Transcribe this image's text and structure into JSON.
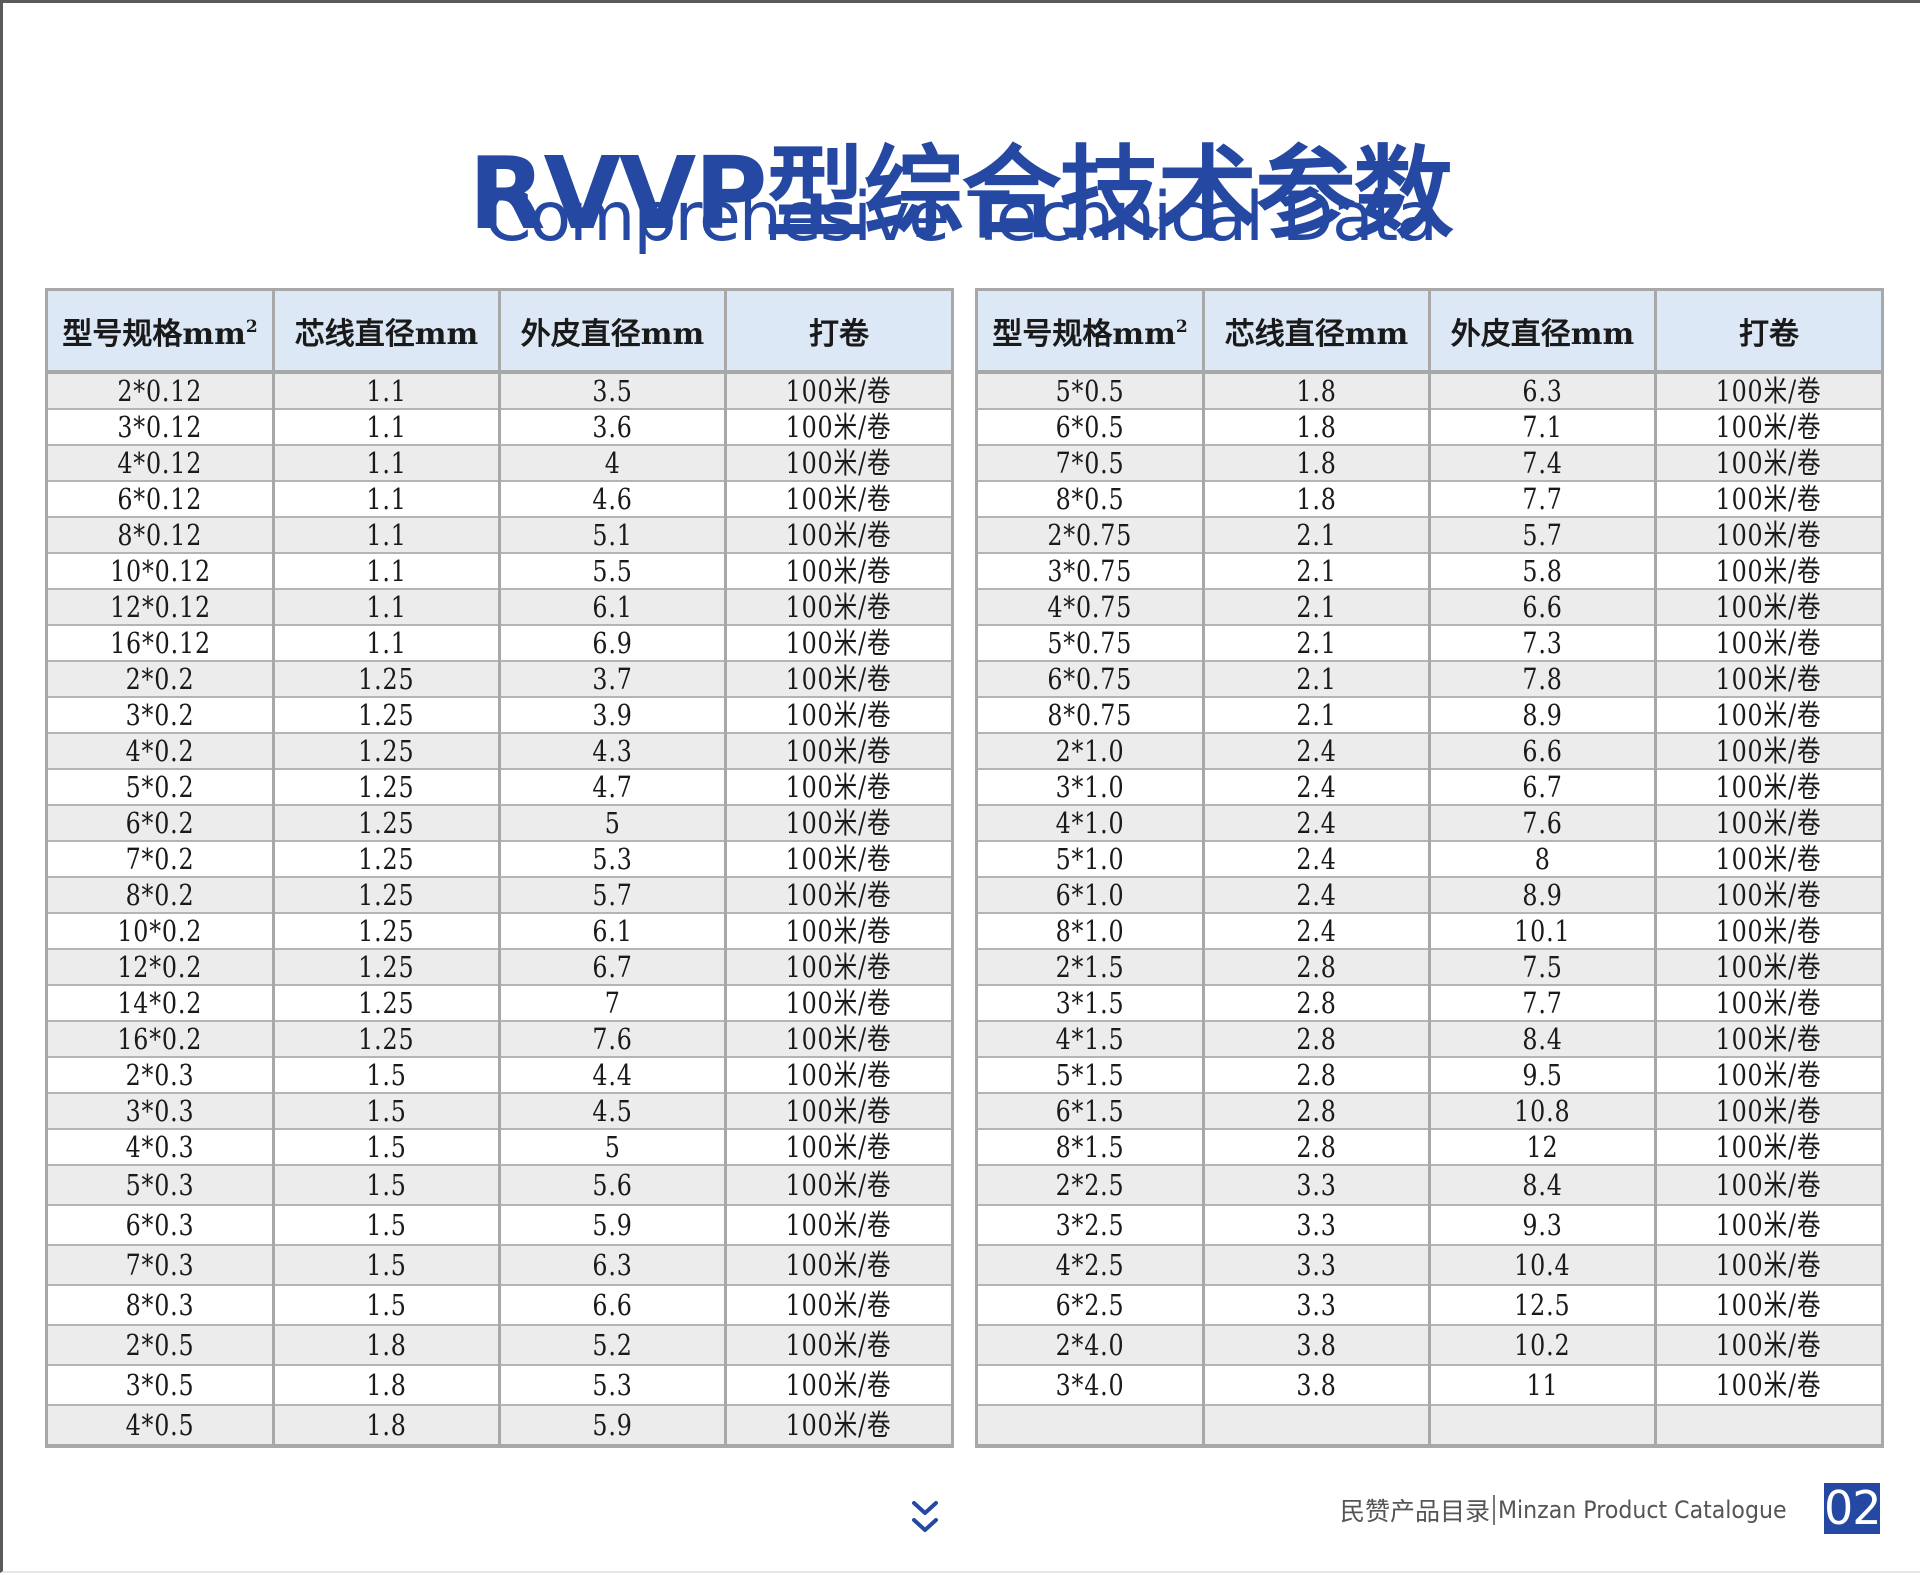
{
  "title": "RVVP型综合技术参数",
  "subtitle": "Comprehesive Technical Data",
  "table_headers": {
    "model": "型号规格mm",
    "model_sup": "2",
    "core_diameter": "芯线直径mm",
    "outer_diameter": "外皮直径mm",
    "packing": "打卷"
  },
  "left_table": {
    "rows": [
      [
        "2*0.12",
        "1.1",
        "3.5",
        "100米/卷"
      ],
      [
        "3*0.12",
        "1.1",
        "3.6",
        "100米/卷"
      ],
      [
        "4*0.12",
        "1.1",
        "4",
        "100米/卷"
      ],
      [
        "6*0.12",
        "1.1",
        "4.6",
        "100米/卷"
      ],
      [
        "8*0.12",
        "1.1",
        "5.1",
        "100米/卷"
      ],
      [
        "10*0.12",
        "1.1",
        "5.5",
        "100米/卷"
      ],
      [
        "12*0.12",
        "1.1",
        "6.1",
        "100米/卷"
      ],
      [
        "16*0.12",
        "1.1",
        "6.9",
        "100米/卷"
      ],
      [
        "2*0.2",
        "1.25",
        "3.7",
        "100米/卷"
      ],
      [
        "3*0.2",
        "1.25",
        "3.9",
        "100米/卷"
      ],
      [
        "4*0.2",
        "1.25",
        "4.3",
        "100米/卷"
      ],
      [
        "5*0.2",
        "1.25",
        "4.7",
        "100米/卷"
      ],
      [
        "6*0.2",
        "1.25",
        "5",
        "100米/卷"
      ],
      [
        "7*0.2",
        "1.25",
        "5.3",
        "100米/卷"
      ],
      [
        "8*0.2",
        "1.25",
        "5.7",
        "100米/卷"
      ],
      [
        "10*0.2",
        "1.25",
        "6.1",
        "100米/卷"
      ],
      [
        "12*0.2",
        "1.25",
        "6.7",
        "100米/卷"
      ],
      [
        "14*0.2",
        "1.25",
        "7",
        "100米/卷"
      ],
      [
        "16*0.2",
        "1.25",
        "7.6",
        "100米/卷"
      ],
      [
        "2*0.3",
        "1.5",
        "4.4",
        "100米/卷"
      ],
      [
        "3*0.3",
        "1.5",
        "4.5",
        "100米/卷"
      ],
      [
        "4*0.3",
        "1.5",
        "5",
        "100米/卷"
      ],
      [
        "5*0.3",
        "1.5",
        "5.6",
        "100米/卷"
      ],
      [
        "6*0.3",
        "1.5",
        "5.9",
        "100米/卷"
      ],
      [
        "7*0.3",
        "1.5",
        "6.3",
        "100米/卷"
      ],
      [
        "8*0.3",
        "1.5",
        "6.6",
        "100米/卷"
      ],
      [
        "2*0.5",
        "1.8",
        "5.2",
        "100米/卷"
      ],
      [
        "3*0.5",
        "1.8",
        "5.3",
        "100米/卷"
      ],
      [
        "4*0.5",
        "1.8",
        "5.9",
        "100米/卷"
      ]
    ]
  },
  "right_table": {
    "rows": [
      [
        "5*0.5",
        "1.8",
        "6.3",
        "100米/卷"
      ],
      [
        "6*0.5",
        "1.8",
        "7.1",
        "100米/卷"
      ],
      [
        "7*0.5",
        "1.8",
        "7.4",
        "100米/卷"
      ],
      [
        "8*0.5",
        "1.8",
        "7.7",
        "100米/卷"
      ],
      [
        "2*0.75",
        "2.1",
        "5.7",
        "100米/卷"
      ],
      [
        "3*0.75",
        "2.1",
        "5.8",
        "100米/卷"
      ],
      [
        "4*0.75",
        "2.1",
        "6.6",
        "100米/卷"
      ],
      [
        "5*0.75",
        "2.1",
        "7.3",
        "100米/卷"
      ],
      [
        "6*0.75",
        "2.1",
        "7.8",
        "100米/卷"
      ],
      [
        "8*0.75",
        "2.1",
        "8.9",
        "100米/卷"
      ],
      [
        "2*1.0",
        "2.4",
        "6.6",
        "100米/卷"
      ],
      [
        "3*1.0",
        "2.4",
        "6.7",
        "100米/卷"
      ],
      [
        "4*1.0",
        "2.4",
        "7.6",
        "100米/卷"
      ],
      [
        "5*1.0",
        "2.4",
        "8",
        "100米/卷"
      ],
      [
        "6*1.0",
        "2.4",
        "8.9",
        "100米/卷"
      ],
      [
        "8*1.0",
        "2.4",
        "10.1",
        "100米/卷"
      ],
      [
        "2*1.5",
        "2.8",
        "7.5",
        "100米/卷"
      ],
      [
        "3*1.5",
        "2.8",
        "7.7",
        "100米/卷"
      ],
      [
        "4*1.5",
        "2.8",
        "8.4",
        "100米/卷"
      ],
      [
        "5*1.5",
        "2.8",
        "9.5",
        "100米/卷"
      ],
      [
        "6*1.5",
        "2.8",
        "10.8",
        "100米/卷"
      ],
      [
        "8*1.5",
        "2.8",
        "12",
        "100米/卷"
      ],
      [
        "2*2.5",
        "3.3",
        "8.4",
        "100米/卷"
      ],
      [
        "3*2.5",
        "3.3",
        "9.3",
        "100米/卷"
      ],
      [
        "4*2.5",
        "3.3",
        "10.4",
        "100米/卷"
      ],
      [
        "6*2.5",
        "3.3",
        "12.5",
        "100米/卷"
      ],
      [
        "2*4.0",
        "3.8",
        "10.2",
        "100米/卷"
      ],
      [
        "3*4.0",
        "3.8",
        "11",
        "100米/卷"
      ],
      [
        "",
        "",
        "",
        ""
      ]
    ]
  },
  "footer": {
    "catalog_cn": "民赞产品目录",
    "catalog_en": "Minzan Product Catalogue",
    "page_number": "02",
    "scroll_icon": "double-chevron-down-icon"
  },
  "colors": {
    "brand_blue": "#2549a2",
    "header_bg": "#dce8f5",
    "row_alt_bg": "#ececec",
    "border": "#a8a8a8"
  }
}
